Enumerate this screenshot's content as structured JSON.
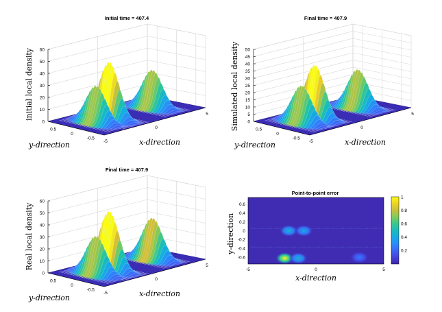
{
  "chart_data": [
    {
      "type": "surface3d",
      "title": "Initial time = 407.4",
      "zlabel": "initial local density",
      "xlabel": "x-direction",
      "ylabel": "y-direction",
      "zticks": [
        "0",
        "10",
        "20",
        "30",
        "40",
        "50",
        "60"
      ],
      "xticks": [
        "-5",
        "0",
        "5"
      ],
      "yticks": [
        "0.5",
        "0",
        "-0.5"
      ],
      "zlim": [
        0,
        60
      ],
      "xlim": [
        -5,
        5
      ],
      "ylim": [
        -0.75,
        0.75
      ],
      "peaks": [
        {
          "x": -3.0,
          "y": 0.0,
          "height": 31
        },
        {
          "x": -1.7,
          "y": 0.0,
          "height": 48
        },
        {
          "x": 2.6,
          "y": 0.0,
          "height": 32
        }
      ]
    },
    {
      "type": "surface3d",
      "title": "Final time = 407.9",
      "zlabel": "Simulated local density",
      "xlabel": "x-direction",
      "ylabel": "y-direction",
      "zticks": [
        "0",
        "5",
        "10",
        "15",
        "20",
        "25",
        "30",
        "35",
        "40",
        "45",
        "50"
      ],
      "xticks": [
        "-5",
        "0",
        "5"
      ],
      "yticks": [
        "0.5",
        "0",
        "-0.5"
      ],
      "zlim": [
        0,
        50
      ],
      "xlim": [
        -5,
        5
      ],
      "ylim": [
        -0.75,
        0.75
      ],
      "peaks": [
        {
          "x": -3.0,
          "y": 0.0,
          "height": 26
        },
        {
          "x": -1.7,
          "y": 0.0,
          "height": 38
        },
        {
          "x": 2.6,
          "y": 0.0,
          "height": 27
        }
      ]
    },
    {
      "type": "surface3d",
      "title": "Final time = 407.9",
      "zlabel": "Real local density",
      "xlabel": "x-direction",
      "ylabel": "y-direction",
      "zticks": [
        "0",
        "10",
        "20",
        "30",
        "40",
        "50",
        "60"
      ],
      "xticks": [
        "-5",
        "0",
        "5"
      ],
      "yticks": [
        "0.5",
        "0",
        "-0.5"
      ],
      "zlim": [
        0,
        60
      ],
      "xlim": [
        -5,
        5
      ],
      "ylim": [
        -0.75,
        0.75
      ],
      "peaks": [
        {
          "x": -3.0,
          "y": 0.0,
          "height": 32
        },
        {
          "x": -1.7,
          "y": 0.0,
          "height": 50
        },
        {
          "x": 2.6,
          "y": 0.0,
          "height": 35
        }
      ]
    },
    {
      "type": "heatmap",
      "title": "Point-to-point error",
      "xlabel": "x-direction",
      "ylabel": "y-direction",
      "xticks": [
        "-5",
        "0",
        "5"
      ],
      "yticks": [
        "0.6",
        "0.4",
        "0.2",
        "0",
        "-0.2",
        "-0.4",
        "-0.6"
      ],
      "xlim": [
        -5,
        5
      ],
      "ylim": [
        -0.75,
        0.75
      ],
      "colorbar_ticks": [
        "0.2",
        "0.4",
        "0.6",
        "0.8",
        "1"
      ],
      "clim": [
        0,
        1
      ],
      "hotspots": [
        {
          "x": -2.0,
          "y": 0.0,
          "value": 0.45
        },
        {
          "x": -0.9,
          "y": 0.0,
          "value": 0.4
        },
        {
          "x": -2.3,
          "y": -0.62,
          "value": 1.0
        },
        {
          "x": -1.3,
          "y": -0.62,
          "value": 0.45
        },
        {
          "x": 3.2,
          "y": -0.6,
          "value": 0.25
        }
      ]
    }
  ]
}
